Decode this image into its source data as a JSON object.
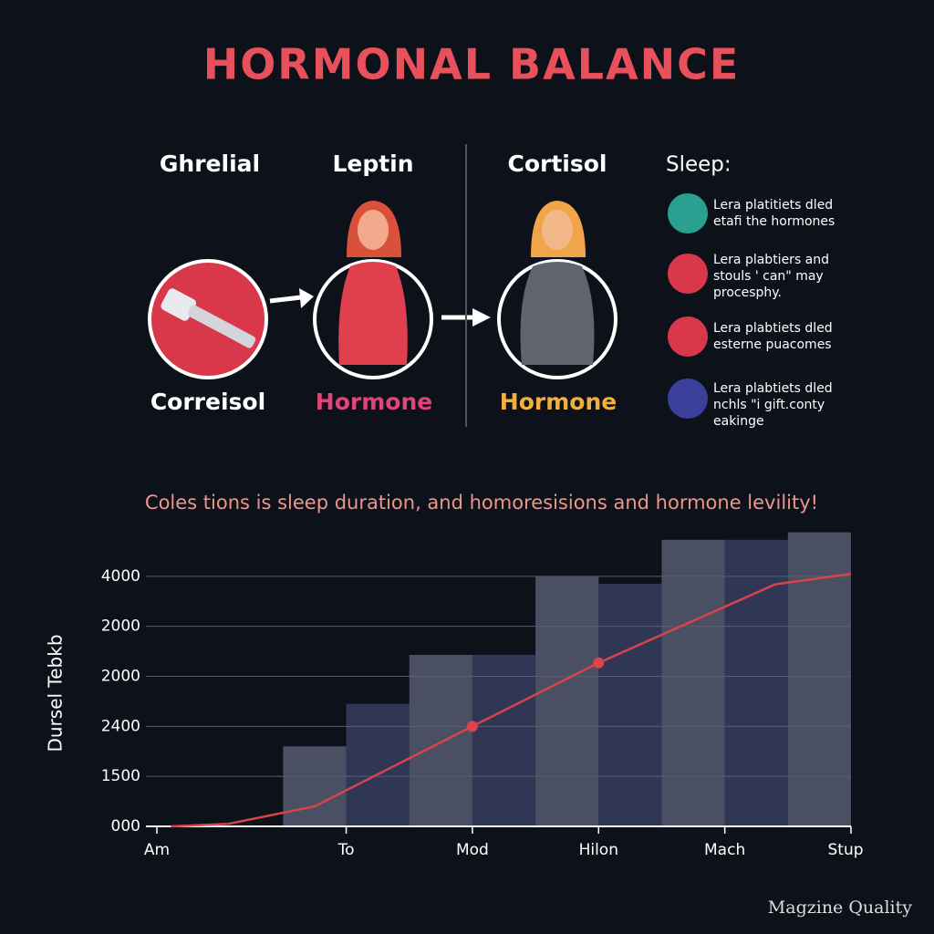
{
  "header": {
    "title": "HORMONAL BALANCE"
  },
  "diagram": {
    "top_labels": [
      "Ghrelial",
      "Leptin",
      "Cortisol"
    ],
    "bottom_labels": [
      "Correisol",
      "Hormone",
      "Hormone"
    ]
  },
  "sleep": {
    "title": "Sleep:",
    "items": [
      {
        "lines": [
          "Lera platitiets dled",
          "etafi the hormones"
        ]
      },
      {
        "lines": [
          "Lera plabtiers and",
          "stouls ' can\" may",
          "procesphy."
        ]
      },
      {
        "lines": [
          "Lera plabtiets dled",
          "esterne puacomes"
        ]
      },
      {
        "lines": [
          "Lera plabtiets dled",
          "nchls \"i gift.conty",
          "eakinge"
        ]
      }
    ]
  },
  "chart_data": {
    "type": "histogram",
    "title": "Coles tions is sleep duration, and homoresisions and hormone levility!",
    "ylabel": "Dursel Tebkb",
    "bins": [
      0,
      1,
      2,
      3,
      4,
      5,
      6,
      7,
      8,
      9
    ],
    "values": [
      1.6,
      2.45,
      3.43,
      3.43,
      5.0,
      4.85,
      5.73,
      5.73,
      5.88
    ],
    "colors": [
      "#4a4f63",
      "#2f3754",
      "#4a4f63",
      "#2f3754",
      "#4a4f63",
      "#2f3754",
      "#4a4f63",
      "#2f3754",
      "#4a4f63"
    ],
    "line": {
      "color": "#d9434b",
      "x": [
        -1.78,
        -0.87,
        0.5,
        3,
        5,
        7.8,
        9
      ],
      "values": [
        0,
        0.05,
        0.4,
        2,
        3.27,
        4.84,
        5.05
      ]
    },
    "markers": {
      "color": "#e0414b",
      "x": [
        3,
        5
      ],
      "values": [
        2,
        3.27
      ]
    },
    "xlim": [
      -2,
      9
    ],
    "ylim": [
      0,
      6
    ],
    "xticks": [
      {
        "value": -2,
        "label": "Am"
      },
      {
        "value": 1,
        "label": "To"
      },
      {
        "value": 3,
        "label": "Mod"
      },
      {
        "value": 5,
        "label": "Hilon"
      },
      {
        "value": 7,
        "label": "Mach"
      },
      {
        "value": 9,
        "label": "Stup"
      }
    ],
    "yticks": [
      {
        "value": 0,
        "label": "000"
      },
      {
        "value": 1,
        "label": "1500"
      },
      {
        "value": 2,
        "label": "2400"
      },
      {
        "value": 3,
        "label": "2000"
      },
      {
        "value": 4,
        "label": "2000"
      },
      {
        "value": 5,
        "label": "4000"
      }
    ],
    "grid": true
  },
  "footer": {
    "text": "Magzine Quality"
  }
}
